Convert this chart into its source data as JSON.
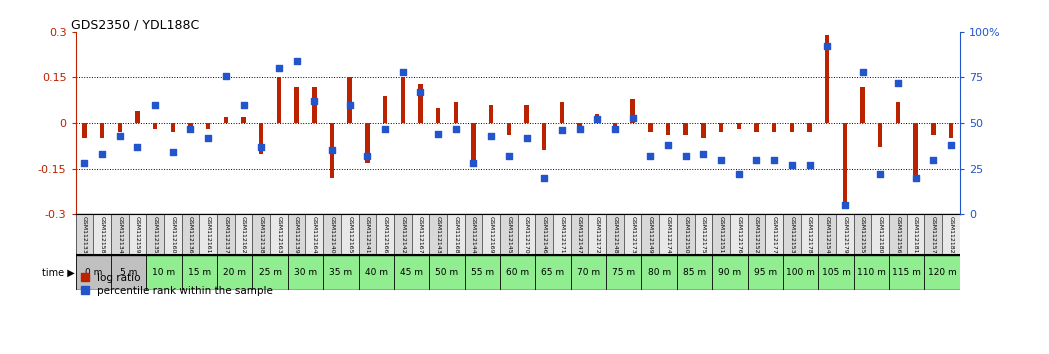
{
  "title": "GDS2350 / YDL188C",
  "gsm_labels": [
    "GSM112133",
    "GSM112158",
    "GSM112134",
    "GSM112159",
    "GSM112135",
    "GSM112160",
    "GSM112136",
    "GSM112161",
    "GSM112137",
    "GSM112162",
    "GSM112138",
    "GSM112163",
    "GSM112139",
    "GSM112164",
    "GSM112140",
    "GSM112165",
    "GSM112141",
    "GSM112166",
    "GSM112142",
    "GSM112167",
    "GSM112143",
    "GSM112168",
    "GSM112144",
    "GSM112169",
    "GSM112145",
    "GSM112170",
    "GSM112146",
    "GSM112171",
    "GSM112147",
    "GSM112172",
    "GSM112148",
    "GSM112173",
    "GSM112149",
    "GSM112174",
    "GSM112150",
    "GSM112175",
    "GSM112151",
    "GSM112176",
    "GSM112152",
    "GSM112177",
    "GSM112153",
    "GSM112178",
    "GSM112154",
    "GSM112179",
    "GSM112155",
    "GSM112180",
    "GSM112156",
    "GSM112181",
    "GSM112157",
    "GSM112182"
  ],
  "time_labels": [
    "0 m",
    "5 m",
    "10 m",
    "15 m",
    "20 m",
    "25 m",
    "30 m",
    "35 m",
    "40 m",
    "45 m",
    "50 m",
    "55 m",
    "60 m",
    "65 m",
    "70 m",
    "75 m",
    "80 m",
    "85 m",
    "90 m",
    "95 m",
    "100 m",
    "105 m",
    "110 m",
    "115 m",
    "120 m"
  ],
  "log_ratio": [
    -0.05,
    -0.05,
    -0.03,
    0.04,
    -0.02,
    -0.03,
    -0.02,
    -0.02,
    0.02,
    0.02,
    -0.1,
    0.15,
    0.12,
    0.12,
    -0.18,
    0.15,
    -0.13,
    0.09,
    0.15,
    0.13,
    0.05,
    0.07,
    -0.13,
    0.06,
    -0.04,
    0.06,
    -0.09,
    0.07,
    -0.02,
    0.03,
    -0.01,
    0.08,
    -0.03,
    -0.04,
    -0.04,
    -0.05,
    -0.03,
    -0.02,
    -0.03,
    -0.03,
    -0.03,
    -0.03,
    0.29,
    -0.27,
    0.12,
    -0.08,
    0.07,
    -0.17,
    -0.04,
    -0.05
  ],
  "percentile_rank": [
    28,
    33,
    43,
    37,
    60,
    34,
    47,
    42,
    76,
    60,
    37,
    80,
    84,
    62,
    35,
    60,
    32,
    47,
    78,
    67,
    44,
    47,
    28,
    43,
    32,
    42,
    20,
    46,
    47,
    52,
    47,
    53,
    32,
    38,
    32,
    33,
    30,
    22,
    30,
    30,
    27,
    27,
    92,
    5,
    78,
    22,
    72,
    20,
    30,
    38
  ],
  "bar_color": "#bb2200",
  "dot_color": "#2255cc",
  "bg_color": "#ffffff",
  "ylim_left": [
    -0.3,
    0.3
  ],
  "ylim_right": [
    0,
    100
  ],
  "hline_vals": [
    0.15,
    0.0,
    -0.15
  ],
  "left_yticks": [
    -0.3,
    -0.15,
    0.0,
    0.15,
    0.3
  ],
  "left_yticklabels": [
    "-0.3",
    "-0.15",
    "0",
    "0.15",
    "0.3"
  ],
  "right_ticks": [
    0,
    25,
    50,
    75,
    100
  ],
  "right_tick_labels": [
    "0",
    "25",
    "50",
    "75",
    "100%"
  ],
  "label_bg_even": "#d8d8d8",
  "label_bg_odd": "#e8e8e8",
  "time_gray_bg": "#c0c0c0",
  "time_green_bg": "#90ee90",
  "n_gray_time": 2
}
